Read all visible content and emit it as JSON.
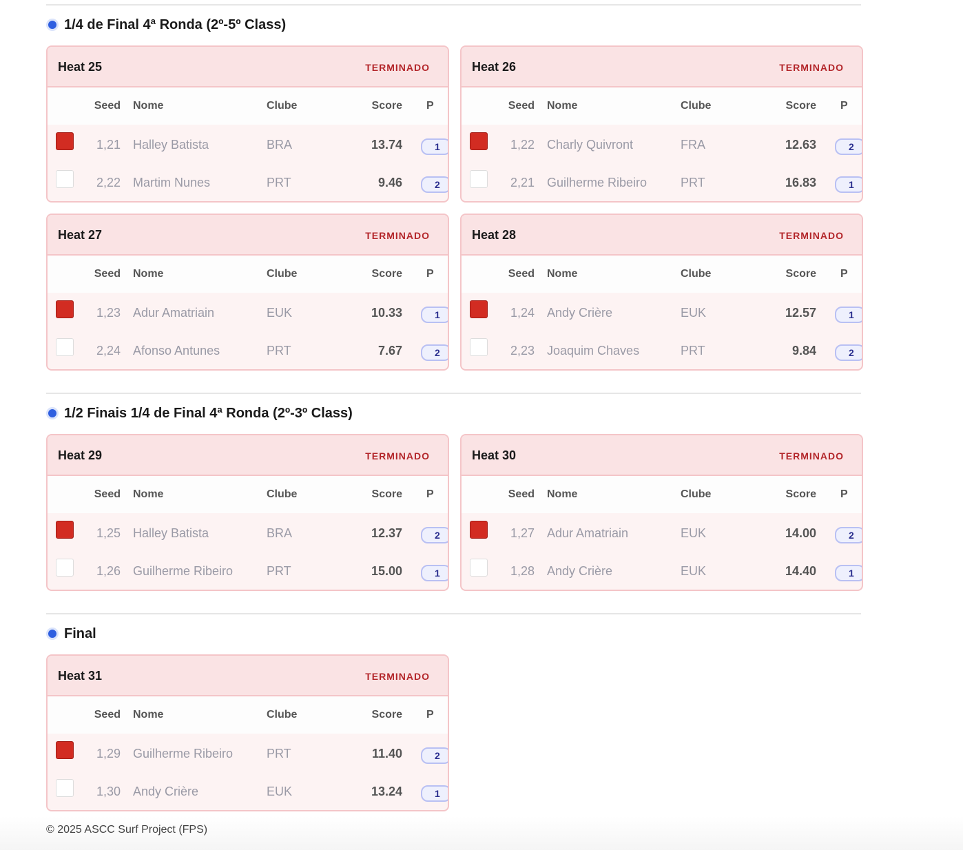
{
  "columns": [
    "Seed",
    "Nome",
    "Clube",
    "Score",
    "P"
  ],
  "sections": [
    {
      "title": "1/4 de Final 4ª Ronda (2º-5º Class)",
      "heats": [
        {
          "name": "Heat 25",
          "status": "TERMINADO",
          "rows": [
            {
              "seed": "1,21",
              "nome": "Halley Batista",
              "clube": "BRA",
              "score": "13.74",
              "p": 1
            },
            {
              "seed": "2,22",
              "nome": "Martim Nunes",
              "clube": "PRT",
              "score": "9.46",
              "p": 2
            }
          ]
        },
        {
          "name": "Heat 26",
          "status": "TERMINADO",
          "rows": [
            {
              "seed": "1,22",
              "nome": "Charly Quivront",
              "clube": "FRA",
              "score": "12.63",
              "p": 2
            },
            {
              "seed": "2,21",
              "nome": "Guilherme Ribeiro",
              "clube": "PRT",
              "score": "16.83",
              "p": 1
            }
          ]
        },
        {
          "name": "Heat 27",
          "status": "TERMINADO",
          "rows": [
            {
              "seed": "1,23",
              "nome": "Adur Amatriain",
              "clube": "EUK",
              "score": "10.33",
              "p": 1
            },
            {
              "seed": "2,24",
              "nome": "Afonso Antunes",
              "clube": "PRT",
              "score": "7.67",
              "p": 2
            }
          ]
        },
        {
          "name": "Heat 28",
          "status": "TERMINADO",
          "rows": [
            {
              "seed": "1,24",
              "nome": "Andy Crière",
              "clube": "EUK",
              "score": "12.57",
              "p": 1
            },
            {
              "seed": "2,23",
              "nome": "Joaquim Chaves",
              "clube": "PRT",
              "score": "9.84",
              "p": 2
            }
          ]
        }
      ]
    },
    {
      "title": "1/2 Finais 1/4 de Final 4ª Ronda (2º-3º Class)",
      "heats": [
        {
          "name": "Heat 29",
          "status": "TERMINADO",
          "rows": [
            {
              "seed": "1,25",
              "nome": "Halley Batista",
              "clube": "BRA",
              "score": "12.37",
              "p": 2
            },
            {
              "seed": "1,26",
              "nome": "Guilherme Ribeiro",
              "clube": "PRT",
              "score": "15.00",
              "p": 1
            }
          ]
        },
        {
          "name": "Heat 30",
          "status": "TERMINADO",
          "rows": [
            {
              "seed": "1,27",
              "nome": "Adur Amatriain",
              "clube": "EUK",
              "score": "14.00",
              "p": 2
            },
            {
              "seed": "1,28",
              "nome": "Andy Crière",
              "clube": "EUK",
              "score": "14.40",
              "p": 1
            }
          ]
        }
      ]
    },
    {
      "title": "Final",
      "heats": [
        {
          "name": "Heat 31",
          "status": "TERMINADO",
          "rows": [
            {
              "seed": "1,29",
              "nome": "Guilherme Ribeiro",
              "clube": "PRT",
              "score": "11.40",
              "p": 2
            },
            {
              "seed": "1,30",
              "nome": "Andy Crière",
              "clube": "EUK",
              "score": "13.24",
              "p": 1
            }
          ]
        }
      ]
    }
  ],
  "footer": "© 2025 ASCC Surf Project (FPS)"
}
